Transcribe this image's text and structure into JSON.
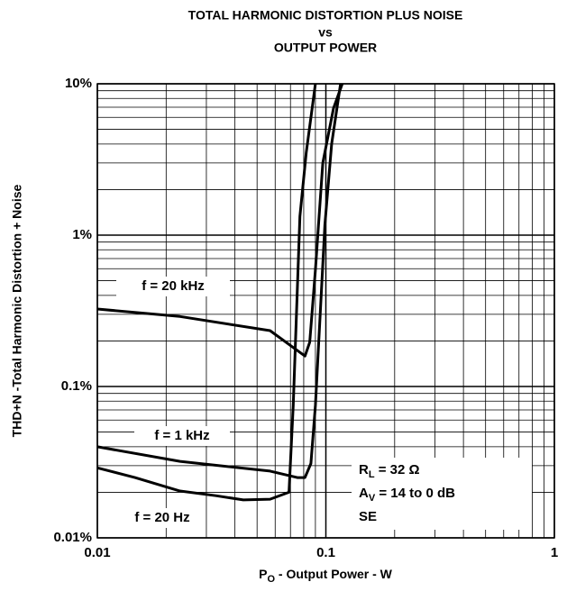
{
  "chart_data": {
    "type": "line",
    "title": [
      "TOTAL HARMONIC DISTORTION PLUS NOISE",
      "vs",
      "OUTPUT POWER"
    ],
    "y_label": "THD+N -Total Harmonic Distortion + Noise",
    "x_label": {
      "main": "P",
      "sub": "O",
      "rest": " - Output Power - W"
    },
    "log_x": true,
    "log_y": true,
    "grid": true,
    "xlim": [
      0.01,
      1
    ],
    "ylim": [
      0.01,
      10
    ],
    "xticks": [
      0.01,
      0.1,
      1
    ],
    "yticks": [
      {
        "value": 0.01,
        "label": "0.01%"
      },
      {
        "value": 0.1,
        "label": "0.1%"
      },
      {
        "value": 1,
        "label": "1%"
      },
      {
        "value": 10,
        "label": "10%"
      }
    ],
    "series": [
      {
        "name": "f = 20 kHz",
        "color": "#000000",
        "x": [
          0.01,
          0.023,
          0.057,
          0.081,
          0.085,
          0.09,
          0.097,
          0.108,
          0.118
        ],
        "values": [
          0.325,
          0.29,
          0.234,
          0.159,
          0.196,
          0.59,
          3.0,
          6.9,
          10
        ]
      },
      {
        "name": "f = 1 kHz",
        "color": "#000000",
        "x": [
          0.01,
          0.023,
          0.057,
          0.075,
          0.081,
          0.086,
          0.09,
          0.099,
          0.106,
          0.116
        ],
        "values": [
          0.04,
          0.032,
          0.0276,
          0.025,
          0.025,
          0.031,
          0.075,
          1.17,
          4,
          10
        ]
      },
      {
        "name": "f = 20 Hz",
        "color": "#000000",
        "x": [
          0.01,
          0.0146,
          0.023,
          0.033,
          0.0435,
          0.057,
          0.069,
          0.072,
          0.077,
          0.082,
          0.09
        ],
        "values": [
          0.029,
          0.025,
          0.0204,
          0.019,
          0.0178,
          0.018,
          0.02,
          0.075,
          1.33,
          3.5,
          10
        ]
      }
    ],
    "annotation": [
      {
        "main": "R",
        "sub": "L",
        "rest": " = 32 Ω"
      },
      {
        "main": "A",
        "sub": "V",
        "rest": " = 14 to 0 dB"
      },
      {
        "main": "SE"
      }
    ]
  }
}
